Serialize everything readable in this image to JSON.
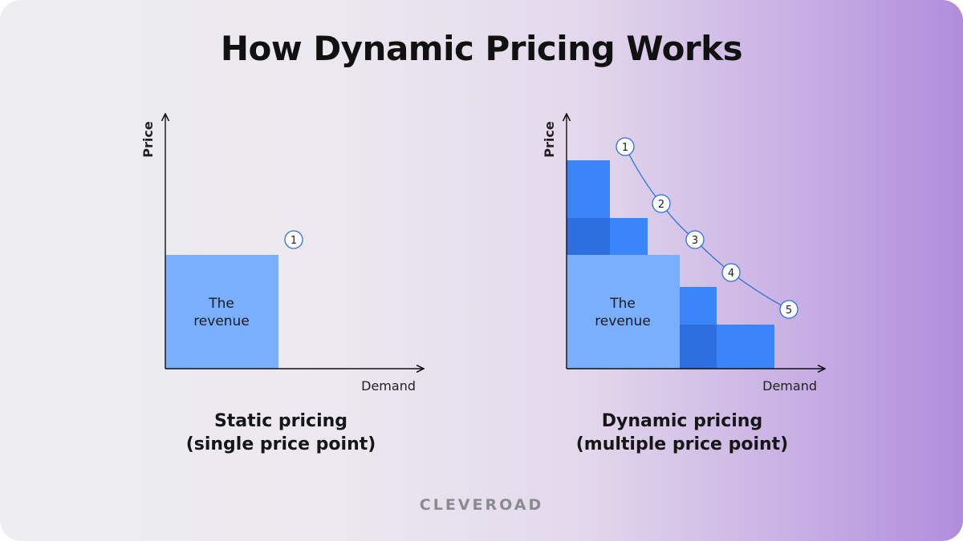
{
  "title": "How Dynamic Pricing Works",
  "left_diagram": {
    "axis_y": "Price",
    "axis_x": "Demand",
    "revenue_line1": "The",
    "revenue_line2": "revenue",
    "marker": "1",
    "caption_line1": "Static pricing",
    "caption_line2": "(single price point)"
  },
  "right_diagram": {
    "axis_y": "Price",
    "axis_x": "Demand",
    "revenue_line1": "The",
    "revenue_line2": "revenue",
    "markers": [
      "1",
      "2",
      "3",
      "4",
      "5"
    ],
    "caption_line1": "Dynamic pricing",
    "caption_line2": "(multiple price point)"
  },
  "logo": "CLEVEROAD",
  "colors": {
    "revenue_block": "#7aaefe",
    "extra_block": "#3a86f9",
    "overlap_block": "#2e6fe0",
    "accent_gradient_end": "#b08ddc"
  }
}
